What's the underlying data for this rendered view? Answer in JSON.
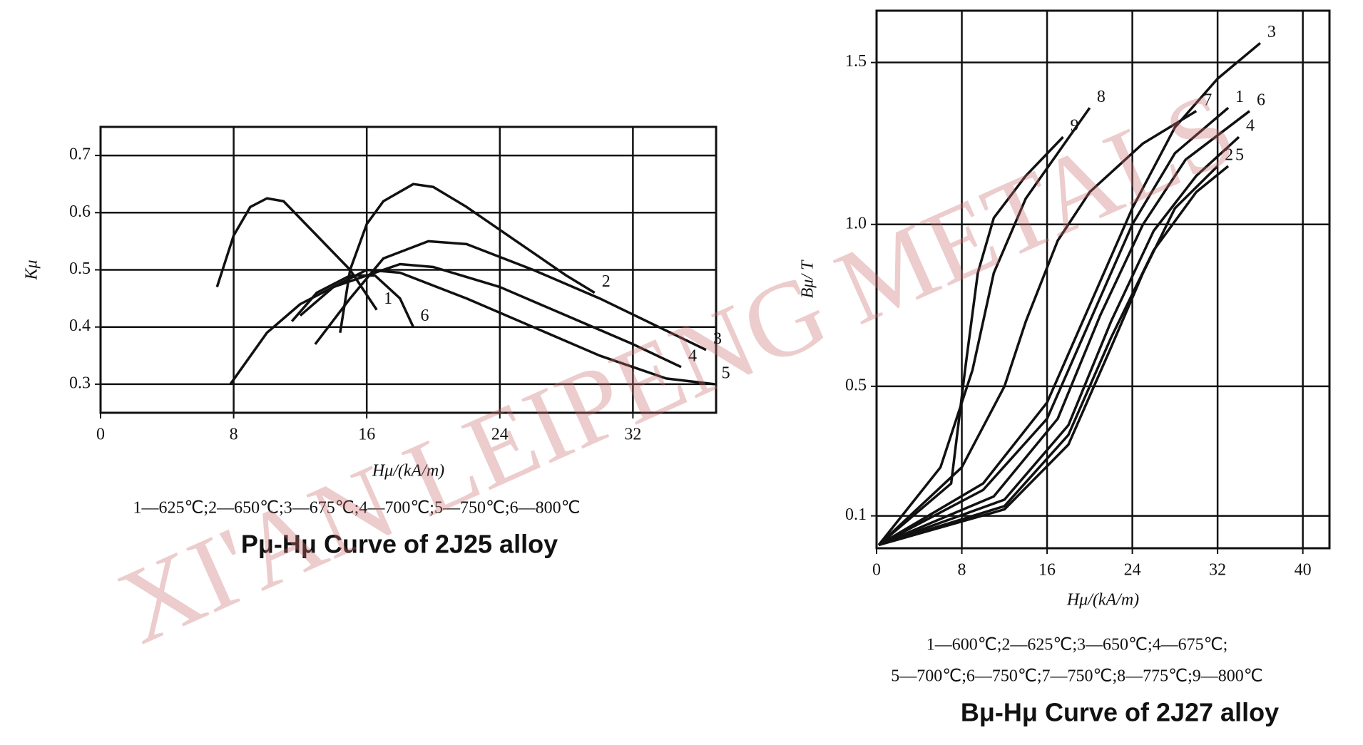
{
  "chart_data": [
    {
      "type": "line",
      "title": "Pμ-Hμ Curve of 2J25 alloy",
      "x_label": "Hμ/(kA/m)",
      "y_label": "Kμ",
      "caption": [
        "1—625℃;2—650℃;3—675℃;4—700℃;5—750℃;6—800℃"
      ],
      "xlim": [
        0,
        37
      ],
      "ylim": [
        0.25,
        0.75
      ],
      "xticks": [
        0,
        8,
        16,
        24,
        32
      ],
      "yticks": [
        0.3,
        0.4,
        0.5,
        0.6,
        0.7
      ],
      "grid": true,
      "series": [
        {
          "name": "1",
          "color": "#111111",
          "x": [
            7,
            8,
            9,
            10,
            11,
            13,
            15,
            16.6
          ],
          "values": [
            0.47,
            0.56,
            0.61,
            0.625,
            0.62,
            0.56,
            0.5,
            0.43
          ]
        },
        {
          "name": "2",
          "color": "#111111",
          "x": [
            14.4,
            15,
            16,
            17,
            18.8,
            20,
            22,
            25,
            28,
            29.7
          ],
          "values": [
            0.39,
            0.5,
            0.58,
            0.62,
            0.65,
            0.645,
            0.61,
            0.55,
            0.49,
            0.46
          ]
        },
        {
          "name": "3",
          "color": "#111111",
          "x": [
            12.9,
            15,
            17,
            19.7,
            22,
            26,
            30,
            36.4
          ],
          "values": [
            0.37,
            0.45,
            0.52,
            0.55,
            0.545,
            0.5,
            0.45,
            0.36
          ]
        },
        {
          "name": "4",
          "color": "#111111",
          "x": [
            12,
            14,
            16,
            18,
            20,
            24,
            28,
            32,
            34.9
          ],
          "values": [
            0.42,
            0.47,
            0.49,
            0.51,
            0.505,
            0.47,
            0.42,
            0.37,
            0.33
          ]
        },
        {
          "name": "5",
          "color": "#111111",
          "x": [
            7.8,
            10,
            12,
            14,
            16,
            18,
            22,
            26,
            30,
            34,
            36.9
          ],
          "values": [
            0.3,
            0.39,
            0.44,
            0.47,
            0.5,
            0.495,
            0.45,
            0.4,
            0.35,
            0.31,
            0.3
          ]
        },
        {
          "name": "6",
          "color": "#111111",
          "x": [
            11.5,
            13,
            15,
            16.5,
            18,
            18.8
          ],
          "values": [
            0.41,
            0.46,
            0.49,
            0.49,
            0.45,
            0.4
          ]
        }
      ]
    },
    {
      "type": "line",
      "title": "Bμ-Hμ Curve of 2J27 alloy",
      "x_label": "Hμ/(kA/m)",
      "y_label": "Bμ/ T",
      "caption": [
        "1—600℃;2—625℃;3—650℃;4—675℃;",
        "5—700℃;6—750℃;7—750℃;8—775℃;9—800℃"
      ],
      "xlim": [
        0,
        42.5
      ],
      "ylim": [
        0,
        1.66
      ],
      "xticks": [
        0,
        8,
        16,
        24,
        32,
        40
      ],
      "yticks": [
        0.1,
        0.5,
        {
          "value": 1,
          "label": "1.0"
        },
        1.5
      ],
      "grid": true,
      "series": [
        {
          "name": "1",
          "color": "#111111",
          "x": [
            0.2,
            10,
            16,
            20,
            24,
            28,
            33
          ],
          "values": [
            0.01,
            0.18,
            0.4,
            0.7,
            1.0,
            1.22,
            1.36
          ]
        },
        {
          "name": "2",
          "color": "#111111",
          "x": [
            0.2,
            12,
            18,
            22,
            25,
            28,
            32
          ],
          "values": [
            0.01,
            0.12,
            0.32,
            0.62,
            0.85,
            1.05,
            1.18
          ]
        },
        {
          "name": "3",
          "color": "#111111",
          "x": [
            0.2,
            10,
            16,
            20,
            24,
            28,
            32,
            36
          ],
          "values": [
            0.01,
            0.2,
            0.45,
            0.75,
            1.05,
            1.3,
            1.45,
            1.56
          ]
        },
        {
          "name": "4",
          "color": "#111111",
          "x": [
            0.2,
            12,
            18,
            22,
            26,
            30,
            34
          ],
          "values": [
            0.01,
            0.15,
            0.38,
            0.7,
            0.98,
            1.15,
            1.27
          ]
        },
        {
          "name": "5",
          "color": "#111111",
          "x": [
            0.2,
            12,
            18,
            22,
            26,
            30,
            33
          ],
          "values": [
            0.01,
            0.13,
            0.35,
            0.65,
            0.92,
            1.1,
            1.18
          ]
        },
        {
          "name": "6",
          "color": "#111111",
          "x": [
            0.2,
            11,
            17,
            21,
            25,
            29,
            35
          ],
          "values": [
            0.01,
            0.16,
            0.4,
            0.72,
            1.0,
            1.2,
            1.35
          ]
        },
        {
          "name": "7",
          "color": "#111111",
          "x": [
            0.2,
            8,
            12,
            14,
            17,
            20,
            25,
            30
          ],
          "values": [
            0.01,
            0.25,
            0.5,
            0.7,
            0.95,
            1.1,
            1.25,
            1.35
          ]
        },
        {
          "name": "8",
          "color": "#111111",
          "x": [
            0.2,
            6,
            9,
            11,
            14,
            17,
            20
          ],
          "values": [
            0.01,
            0.25,
            0.55,
            0.85,
            1.08,
            1.22,
            1.36
          ]
        },
        {
          "name": "9",
          "color": "#111111",
          "x": [
            0.2,
            7,
            8.3,
            9.5,
            11,
            14,
            17.5
          ],
          "values": [
            0.01,
            0.2,
            0.55,
            0.85,
            1.02,
            1.15,
            1.27
          ]
        }
      ]
    }
  ],
  "watermark": "XI'AN LEIPENG METALS"
}
